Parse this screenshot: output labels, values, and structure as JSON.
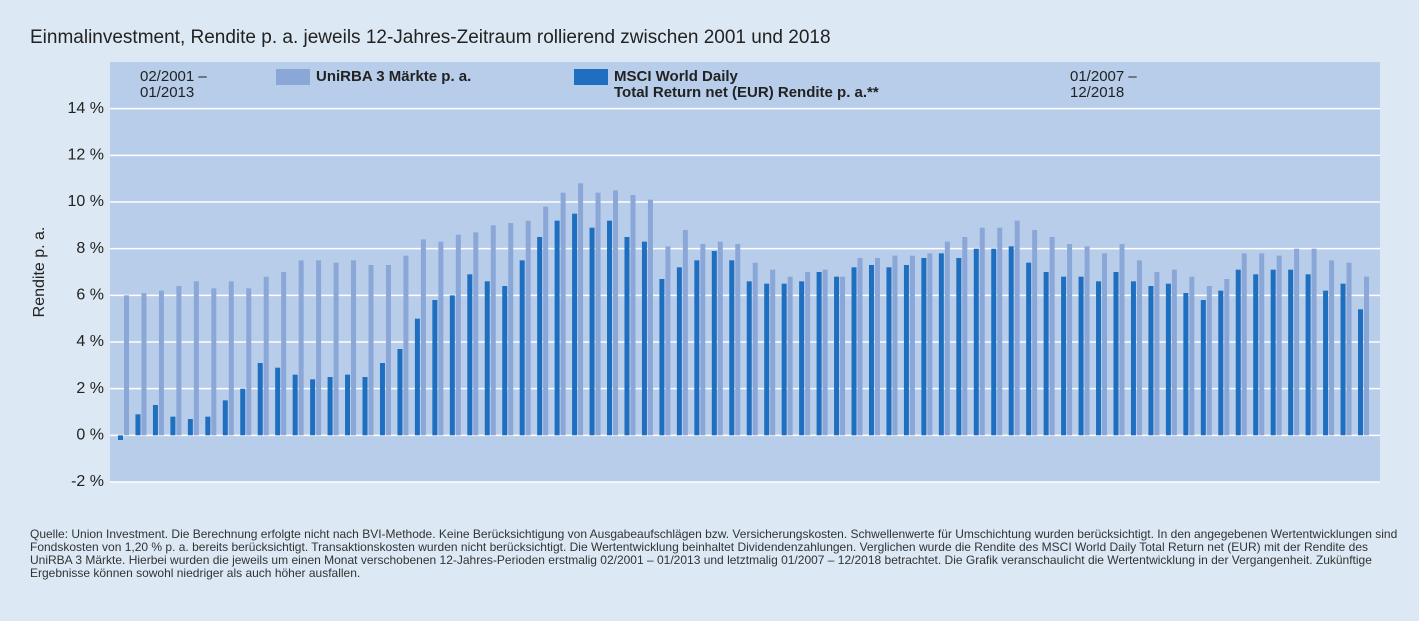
{
  "chart_data": {
    "type": "bar",
    "title": "Einmalinvestment, Rendite p. a. jeweils 12-Jahres-Zeitraum rollierend zwischen 2001 und 2018",
    "y_label": "Rendite p. a.",
    "annotations": [
      "02/2001 –\n01/2013",
      "01/2007 –\n12/2018"
    ],
    "categories": [
      null,
      null,
      null,
      null,
      null,
      null,
      null,
      null,
      null,
      null,
      null,
      null,
      null,
      null,
      null,
      null,
      null,
      null,
      null,
      null,
      null,
      null,
      null,
      null,
      null,
      null,
      null,
      null,
      null,
      null,
      null,
      null,
      null,
      null,
      null,
      null,
      null,
      null,
      null,
      null,
      null,
      null,
      null,
      null,
      null,
      null,
      null,
      null,
      null,
      null,
      null,
      null,
      null,
      null,
      null,
      null,
      null,
      null,
      null,
      null,
      null,
      null,
      null,
      null,
      null,
      null,
      null,
      null,
      null,
      null,
      null,
      null
    ],
    "series": [
      {
        "name": "UniRBA 3 Märkte p. a.",
        "color": "#8ba7d8",
        "values": [
          6.0,
          6.1,
          6.2,
          6.4,
          6.6,
          6.3,
          6.6,
          6.3,
          6.8,
          7.0,
          7.5,
          7.5,
          7.4,
          7.5,
          7.3,
          7.3,
          7.7,
          8.4,
          8.3,
          8.6,
          8.7,
          9.0,
          9.1,
          9.2,
          9.8,
          10.4,
          10.8,
          10.4,
          10.5,
          10.3,
          10.1,
          8.1,
          8.8,
          8.2,
          8.3,
          8.2,
          7.4,
          7.1,
          6.8,
          7.0,
          7.1,
          6.8,
          7.6,
          7.6,
          7.7,
          7.7,
          7.8,
          8.3,
          8.5,
          8.9,
          8.9,
          9.2,
          8.8,
          8.5,
          8.2,
          8.1,
          7.8,
          8.2,
          7.5,
          7.0,
          7.1,
          6.8,
          6.4,
          6.7,
          7.8,
          7.8,
          7.7,
          8.0,
          8.0,
          7.5,
          7.4,
          6.8
        ]
      },
      {
        "name": "MSCI World Daily\nTotal Return net (EUR) Rendite p. a.**",
        "color": "#1f6fc0",
        "values": [
          -0.2,
          0.9,
          1.3,
          0.8,
          0.7,
          0.8,
          1.5,
          2.0,
          3.1,
          2.9,
          2.6,
          2.4,
          2.5,
          2.6,
          2.5,
          3.1,
          3.7,
          5.0,
          5.8,
          6.0,
          6.9,
          6.6,
          6.4,
          7.5,
          8.5,
          9.2,
          9.5,
          8.9,
          9.2,
          8.5,
          8.3,
          6.7,
          7.2,
          7.5,
          7.9,
          7.5,
          6.6,
          6.5,
          6.5,
          6.6,
          7.0,
          6.8,
          7.2,
          7.3,
          7.2,
          7.3,
          7.6,
          7.8,
          7.6,
          8.0,
          8.0,
          8.1,
          7.4,
          7.0,
          6.8,
          6.8,
          6.6,
          7.0,
          6.6,
          6.4,
          6.5,
          6.1,
          5.8,
          6.2,
          7.1,
          6.9,
          7.1,
          7.1,
          6.9,
          6.2,
          6.5,
          5.4
        ]
      }
    ],
    "ylim": [
      -2,
      16
    ],
    "yticks": [
      {
        "value": -2,
        "label": "-2 %"
      },
      {
        "value": 0,
        "label": "0 %"
      },
      {
        "value": 2,
        "label": "2 %"
      },
      {
        "value": 4,
        "label": "4 %"
      },
      {
        "value": 6,
        "label": "6 %"
      },
      {
        "value": 8,
        "label": "8 %"
      },
      {
        "value": 10,
        "label": "10 %"
      },
      {
        "value": 12,
        "label": "12 %"
      },
      {
        "value": 14,
        "label": "14 %"
      }
    ],
    "grid": true,
    "footnote": "Quelle: Union Investment. Die Berechnung erfolgte nicht nach BVI-Methode. Keine Berücksichtigung von Ausgabeaufschlägen bzw. Versicherungskosten. Schwellenwerte für Umschichtung wurden berücksichtigt. In den angegebenen Wertentwicklungen sind Fondskosten von 1,20 % p. a. bereits berücksichtigt. Transaktionskosten wurden nicht berücksichtigt. Die Wertentwicklung beinhaltet Dividendenzahlungen. Verglichen wurde die Rendite des MSCI World Daily Total Return net (EUR) mit der Rendite des UniRBA 3 Märkte. Hierbei wurden die jeweils um einen Monat verschobenen 12-Jahres-Perioden erstmalig 02/2001 – 01/2013 und letztmalig 01/2007 – 12/2018 betrachtet. Die Grafik veranschaulicht die Wertentwicklung in der Vergangenheit. Zukünftige Ergebnisse können sowohl niedriger als auch höher ausfallen."
  }
}
